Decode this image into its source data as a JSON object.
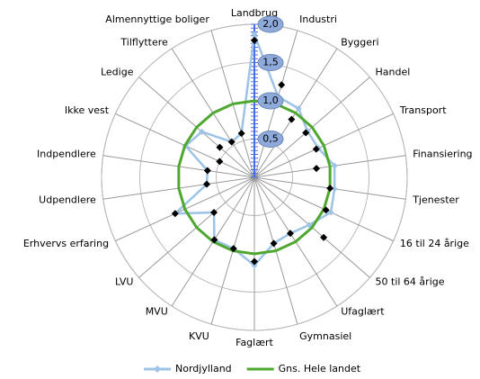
{
  "chart_data": {
    "type": "radar",
    "categories": [
      "Landbrug",
      "Industri",
      "Byggeri",
      "Handel",
      "Transport",
      "Finansiering",
      "Tjenester",
      "16 til 24 årige",
      "50 til 64 årige",
      "Ufaglært",
      "Gymnasiel",
      "Faglært",
      "KVU",
      "MVU",
      "LVU",
      "Erhvervs erfaring",
      "Udpendlere",
      "Indpendlere",
      "Ikke vest",
      "Ledige",
      "Tilflyttere",
      "Almennyttige boliger"
    ],
    "series": [
      {
        "name": "Nordjylland",
        "color": "#9dc3e6",
        "marker": "diamond",
        "values": [
          1.87,
          1.1,
          1.07,
          0.92,
          0.92,
          1.06,
          1.06,
          1.1,
          0.95,
          0.87,
          0.9,
          1.15,
          0.97,
          0.97,
          0.7,
          1.14,
          0.63,
          0.62,
          0.99,
          0.91,
          0.55,
          0.6
        ]
      },
      {
        "name": "Gns. Hele landet",
        "color": "#4ea72e",
        "values": [
          1,
          1,
          1,
          1,
          1,
          1,
          1,
          1,
          1,
          1,
          1,
          1,
          1,
          1,
          1,
          1,
          1,
          1,
          1,
          1,
          1,
          1
        ]
      },
      {
        "color": "#000000",
        "marker": "diamond",
        "line": false,
        "values": [
          1.79,
          1.26,
          0.9,
          0.89,
          0.89,
          0.82,
          1.0,
          1.03,
          1.2,
          0.87,
          0.9,
          1.1,
          0.97,
          0.97,
          0.7,
          1.14,
          0.63,
          0.62,
          0.5,
          0.6,
          0.55,
          0.6
        ]
      }
    ],
    "rlim": [
      0,
      2
    ],
    "rticks": [
      {
        "value": 0.5,
        "label": "0,5"
      },
      {
        "value": 1,
        "label": "1,0"
      },
      {
        "value": 1.5,
        "label": "1,5"
      },
      {
        "value": 2,
        "label": "2,0"
      }
    ],
    "legend": "bottom"
  }
}
